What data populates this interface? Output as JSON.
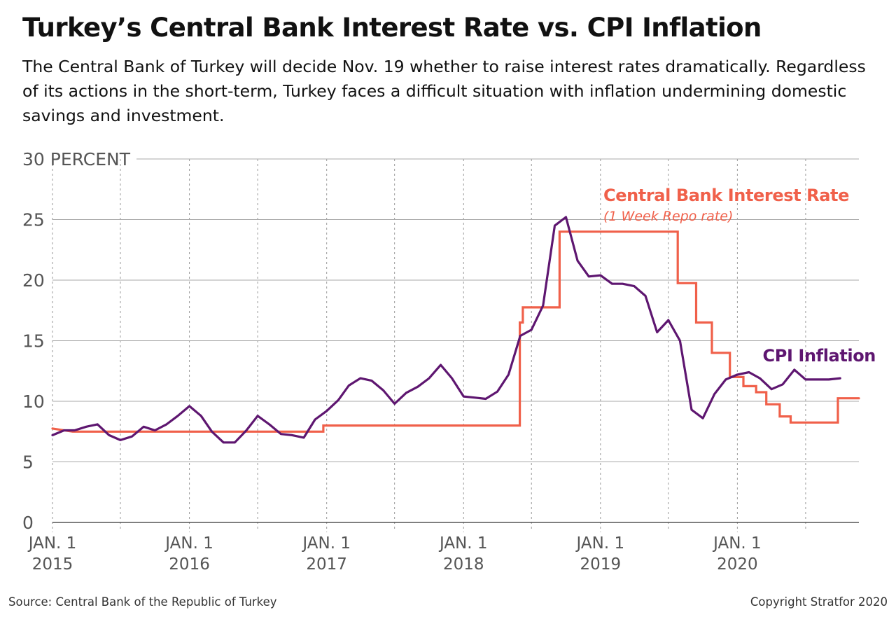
{
  "title": "Turkey’s Central Bank Interest Rate vs. CPI Inflation",
  "subtitle": "The Central Bank of Turkey will decide Nov. 19 whether to raise interest rates dramatically. Regardless of its actions in the short-term, Turkey faces a difficult situation with inflation undermining domestic savings and investment.",
  "source": "Source: Central Bank of the Republic of Turkey",
  "copyright": "Copyright Stratfor 2020",
  "chart_data": {
    "type": "line",
    "ylim": [
      0,
      30
    ],
    "ylabel": "PERCENT",
    "y_ticks": [
      "30 PERCENT",
      "25",
      "20",
      "15",
      "10",
      "5",
      "0"
    ],
    "y_tick_values": [
      30,
      25,
      20,
      15,
      10,
      5,
      0
    ],
    "x_range": [
      "2015-01-01",
      "2020-11-20"
    ],
    "x_ticks": [
      {
        "date": "2015-01-01",
        "month": "JAN. 1",
        "year": "2015"
      },
      {
        "date": "2016-01-01",
        "month": "JAN. 1",
        "year": "2016"
      },
      {
        "date": "2017-01-01",
        "month": "JAN. 1",
        "year": "2017"
      },
      {
        "date": "2018-01-01",
        "month": "JAN. 1",
        "year": "2018"
      },
      {
        "date": "2019-01-01",
        "month": "JAN. 1",
        "year": "2019"
      },
      {
        "date": "2020-01-01",
        "month": "JAN. 1",
        "year": "2020"
      }
    ],
    "grid": "horizontal solid at each y tick, vertical dotted every six months",
    "series": [
      {
        "name": "Central Bank Interest Rate",
        "note": "(1 Week Repo rate)",
        "color": "#f0604a",
        "style": "step",
        "points": [
          [
            "2015-01-01",
            7.75
          ],
          [
            "2015-02-24",
            7.5
          ],
          [
            "2016-12-23",
            7.5
          ],
          [
            "2016-12-23",
            8.0
          ],
          [
            "2018-05-31",
            8.0
          ],
          [
            "2018-05-31",
            16.5
          ],
          [
            "2018-06-08",
            16.5
          ],
          [
            "2018-06-08",
            17.75
          ],
          [
            "2018-09-14",
            17.75
          ],
          [
            "2018-09-14",
            24.0
          ],
          [
            "2019-07-26",
            24.0
          ],
          [
            "2019-07-26",
            19.75
          ],
          [
            "2019-09-13",
            19.75
          ],
          [
            "2019-09-13",
            16.5
          ],
          [
            "2019-10-25",
            16.5
          ],
          [
            "2019-10-25",
            14.0
          ],
          [
            "2019-12-12",
            14.0
          ],
          [
            "2019-12-12",
            12.0
          ],
          [
            "2020-01-17",
            12.0
          ],
          [
            "2020-01-17",
            11.25
          ],
          [
            "2020-02-20",
            11.25
          ],
          [
            "2020-02-20",
            10.75
          ],
          [
            "2020-03-18",
            10.75
          ],
          [
            "2020-03-18",
            9.75
          ],
          [
            "2020-04-23",
            9.75
          ],
          [
            "2020-04-23",
            8.75
          ],
          [
            "2020-05-22",
            8.75
          ],
          [
            "2020-05-22",
            8.25
          ],
          [
            "2020-09-25",
            8.25
          ],
          [
            "2020-09-25",
            10.25
          ],
          [
            "2020-11-20",
            10.25
          ]
        ]
      },
      {
        "name": "CPI Inflation",
        "color": "#5e1670",
        "style": "line",
        "points": [
          [
            "2015-01-01",
            7.2
          ],
          [
            "2015-02-01",
            7.6
          ],
          [
            "2015-03-01",
            7.6
          ],
          [
            "2015-04-01",
            7.9
          ],
          [
            "2015-05-01",
            8.1
          ],
          [
            "2015-06-01",
            7.2
          ],
          [
            "2015-07-01",
            6.8
          ],
          [
            "2015-08-01",
            7.1
          ],
          [
            "2015-09-01",
            7.9
          ],
          [
            "2015-10-01",
            7.6
          ],
          [
            "2015-11-01",
            8.1
          ],
          [
            "2015-12-01",
            8.8
          ],
          [
            "2016-01-01",
            9.6
          ],
          [
            "2016-02-01",
            8.8
          ],
          [
            "2016-03-01",
            7.5
          ],
          [
            "2016-04-01",
            6.6
          ],
          [
            "2016-05-01",
            6.6
          ],
          [
            "2016-06-01",
            7.6
          ],
          [
            "2016-07-01",
            8.8
          ],
          [
            "2016-08-01",
            8.1
          ],
          [
            "2016-09-01",
            7.3
          ],
          [
            "2016-10-01",
            7.2
          ],
          [
            "2016-11-01",
            7.0
          ],
          [
            "2016-12-01",
            8.5
          ],
          [
            "2017-01-01",
            9.2
          ],
          [
            "2017-02-01",
            10.1
          ],
          [
            "2017-03-01",
            11.3
          ],
          [
            "2017-04-01",
            11.9
          ],
          [
            "2017-05-01",
            11.7
          ],
          [
            "2017-06-01",
            10.9
          ],
          [
            "2017-07-01",
            9.8
          ],
          [
            "2017-08-01",
            10.7
          ],
          [
            "2017-09-01",
            11.2
          ],
          [
            "2017-10-01",
            11.9
          ],
          [
            "2017-11-01",
            13.0
          ],
          [
            "2017-12-01",
            11.9
          ],
          [
            "2018-01-01",
            10.4
          ],
          [
            "2018-02-01",
            10.3
          ],
          [
            "2018-03-01",
            10.2
          ],
          [
            "2018-04-01",
            10.8
          ],
          [
            "2018-05-01",
            12.2
          ],
          [
            "2018-06-01",
            15.4
          ],
          [
            "2018-07-01",
            15.9
          ],
          [
            "2018-08-01",
            17.9
          ],
          [
            "2018-09-01",
            24.5
          ],
          [
            "2018-10-01",
            25.2
          ],
          [
            "2018-11-01",
            21.6
          ],
          [
            "2018-12-01",
            20.3
          ],
          [
            "2019-01-01",
            20.4
          ],
          [
            "2019-02-01",
            19.7
          ],
          [
            "2019-03-01",
            19.7
          ],
          [
            "2019-04-01",
            19.5
          ],
          [
            "2019-05-01",
            18.7
          ],
          [
            "2019-06-01",
            15.7
          ],
          [
            "2019-07-01",
            16.7
          ],
          [
            "2019-08-01",
            15.0
          ],
          [
            "2019-09-01",
            9.3
          ],
          [
            "2019-10-01",
            8.6
          ],
          [
            "2019-11-01",
            10.6
          ],
          [
            "2019-12-01",
            11.8
          ],
          [
            "2020-01-01",
            12.2
          ],
          [
            "2020-02-01",
            12.4
          ],
          [
            "2020-03-01",
            11.9
          ],
          [
            "2020-04-01",
            11.0
          ],
          [
            "2020-05-01",
            11.4
          ],
          [
            "2020-06-01",
            12.6
          ],
          [
            "2020-07-01",
            11.8
          ],
          [
            "2020-08-01",
            11.8
          ],
          [
            "2020-09-01",
            11.8
          ],
          [
            "2020-10-01",
            11.9
          ]
        ]
      }
    ]
  }
}
